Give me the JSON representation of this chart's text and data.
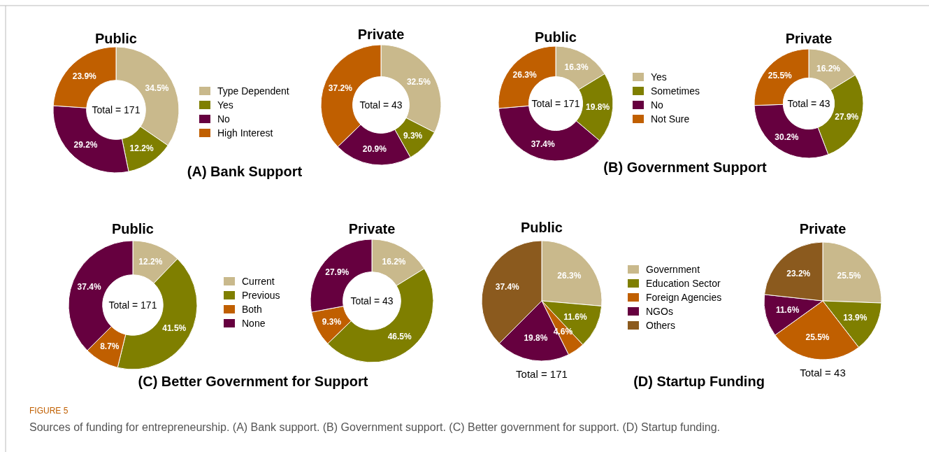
{
  "chart_data": [
    {
      "type": "donut",
      "title": "Public",
      "subtitle": "(A) Bank Support",
      "categories": [
        "Type Dependent",
        "Yes",
        "No",
        "High Interest"
      ],
      "values": [
        34.5,
        12.2,
        29.2,
        23.9
      ],
      "value_labels": [
        "34.5%",
        "12.2%",
        "29.2%",
        "23.9%"
      ],
      "colors": [
        "#c9b98c",
        "#7f7f00",
        "#66003f",
        "#c05f00"
      ],
      "legend": "right",
      "annotations": [
        "Total = 171"
      ]
    },
    {
      "type": "donut",
      "title": "Private",
      "categories": [
        null,
        null,
        null,
        null
      ],
      "values": [
        32.5,
        9.3,
        20.9,
        37.2
      ],
      "value_labels": [
        "32.5%",
        "9.3%",
        "20.9%",
        "37.2%"
      ],
      "colors": [
        "#c9b98c",
        "#7f7f00",
        "#66003f",
        "#c05f00"
      ],
      "annotations": [
        "Total = 43"
      ]
    },
    {
      "type": "donut",
      "title": "Public",
      "subtitle": "(B) Government Support",
      "categories": [
        "Yes",
        "Sometimes",
        "No",
        "Not Sure"
      ],
      "values": [
        16.3,
        19.8,
        37.4,
        26.3
      ],
      "value_labels": [
        "16.3%",
        "19.8%",
        "37.4%",
        "26.3%"
      ],
      "colors": [
        "#c9b98c",
        "#7f7f00",
        "#66003f",
        "#c05f00"
      ],
      "legend": "right",
      "annotations": [
        "Total = 171"
      ]
    },
    {
      "type": "donut",
      "title": "Private",
      "categories": [
        null,
        null,
        null,
        null
      ],
      "values": [
        16.2,
        27.9,
        30.2,
        25.5
      ],
      "value_labels": [
        "16.2%",
        "27.9%",
        "30.2%",
        "25.5%"
      ],
      "colors": [
        "#c9b98c",
        "#7f7f00",
        "#66003f",
        "#c05f00"
      ],
      "annotations": [
        "Total = 43"
      ]
    },
    {
      "type": "donut",
      "title": "Public",
      "subtitle": "(C) Better Government for Support",
      "categories": [
        "Current",
        "Previous",
        "Both",
        "None"
      ],
      "values": [
        12.2,
        41.5,
        8.7,
        37.4
      ],
      "value_labels": [
        "12.2%",
        "41.5%",
        "8.7%",
        "37.4%"
      ],
      "colors": [
        "#c9b98c",
        "#7f7f00",
        "#c05f00",
        "#66003f"
      ],
      "legend": "right",
      "annotations": [
        "Total = 171"
      ]
    },
    {
      "type": "donut",
      "title": "Private",
      "categories": [
        null,
        null,
        null,
        null
      ],
      "values": [
        16.2,
        46.5,
        9.3,
        27.9
      ],
      "value_labels": [
        "16.2%",
        "46.5%",
        "9.3%",
        "27.9%"
      ],
      "colors": [
        "#c9b98c",
        "#7f7f00",
        "#c05f00",
        "#66003f"
      ],
      "annotations": [
        "Total = 43"
      ]
    },
    {
      "type": "pie",
      "title": "Public",
      "subtitle": "(D) Startup Funding",
      "categories": [
        "Government",
        "Education Sector",
        "Foreign Agencies",
        "NGOs",
        "Others"
      ],
      "values": [
        26.3,
        11.6,
        4.6,
        19.8,
        37.4
      ],
      "value_labels": [
        "26.3%",
        "11.6%",
        "4.6%",
        "19.8%",
        "37.4%"
      ],
      "colors": [
        "#c9b98c",
        "#7f7f00",
        "#c05f00",
        "#66003f",
        "#8b5a1e"
      ],
      "legend": "right",
      "annotations": [
        "Total = 171"
      ]
    },
    {
      "type": "pie",
      "title": "Private",
      "categories": [
        null,
        null,
        null,
        null,
        null
      ],
      "values": [
        25.5,
        13.9,
        25.5,
        11.6,
        23.2
      ],
      "value_labels": [
        "25.5%",
        "13.9%",
        "25.5%",
        "11.6%",
        "23.2%"
      ],
      "colors": [
        "#c9b98c",
        "#7f7f00",
        "#c05f00",
        "#66003f",
        "#8b5a1e"
      ],
      "annotations": [
        "Total = 43",
        "FIGURE 5",
        "Sources of funding for entrepreneurship. (A) Bank support. (B) Government support. (C) Better government for support. (D) Startup funding."
      ]
    }
  ]
}
